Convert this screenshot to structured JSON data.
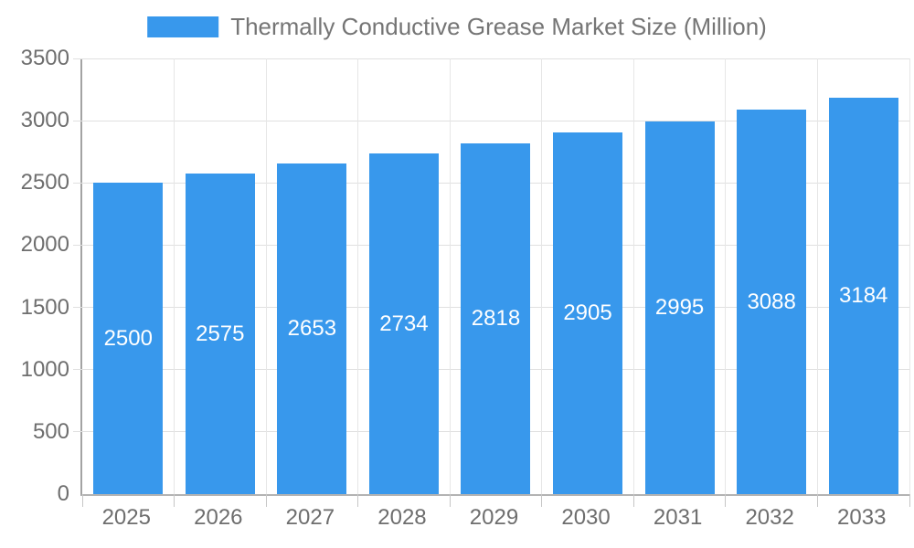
{
  "chart_data": {
    "type": "bar",
    "title": "Thermally Conductive Grease Market Size (Million)",
    "categories": [
      "2025",
      "2026",
      "2027",
      "2028",
      "2029",
      "2030",
      "2031",
      "2032",
      "2033"
    ],
    "values": [
      2500,
      2575,
      2653,
      2734,
      2818,
      2905,
      2995,
      3088,
      3184
    ],
    "xlabel": "",
    "ylabel": "",
    "ylim": [
      0,
      3500
    ],
    "y_ticks": [
      0,
      500,
      1000,
      1500,
      2000,
      2500,
      3000,
      3500
    ],
    "grid": true,
    "legend_position": "top-center",
    "bar_labels_inside": true
  },
  "colors": {
    "bar": "#3898EC",
    "bar_label": "#FFFFFF",
    "title_text": "#757575",
    "axis_text": "#6E6E6E",
    "gridline_h": "#E0E0E0",
    "gridline_v": "#E6E6E6",
    "axis_tick": "#C6C6C6",
    "background": "#FFFFFF"
  }
}
